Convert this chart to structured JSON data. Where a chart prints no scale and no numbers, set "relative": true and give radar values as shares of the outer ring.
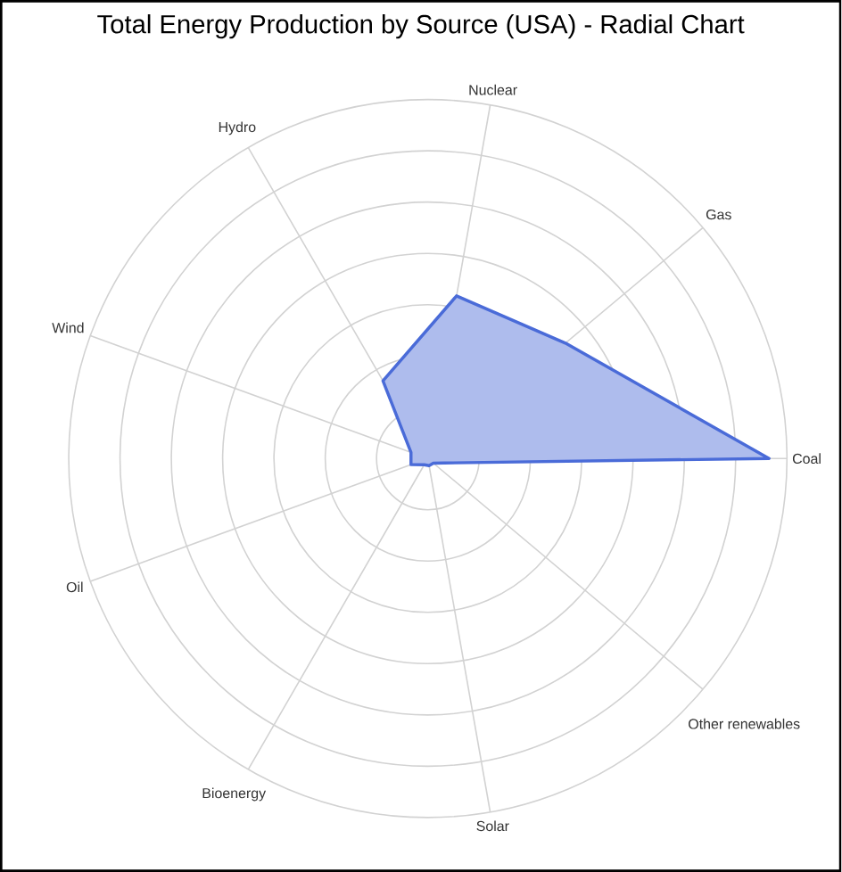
{
  "chart_data": {
    "type": "radar",
    "title": "Total Energy Production by Source (USA) - Radial Chart",
    "relative": true,
    "categories": [
      "Nuclear",
      "Gas",
      "Coal",
      "Other renewables",
      "Solar",
      "Bioenergy",
      "Oil",
      "Wind",
      "Hydro"
    ],
    "series": [
      {
        "color": "#4a6bd8",
        "values": [
          0.46,
          0.5,
          0.95,
          0.02,
          0.02,
          0.02,
          0.05,
          0.05,
          0.25
        ]
      }
    ],
    "grid": true
  }
}
